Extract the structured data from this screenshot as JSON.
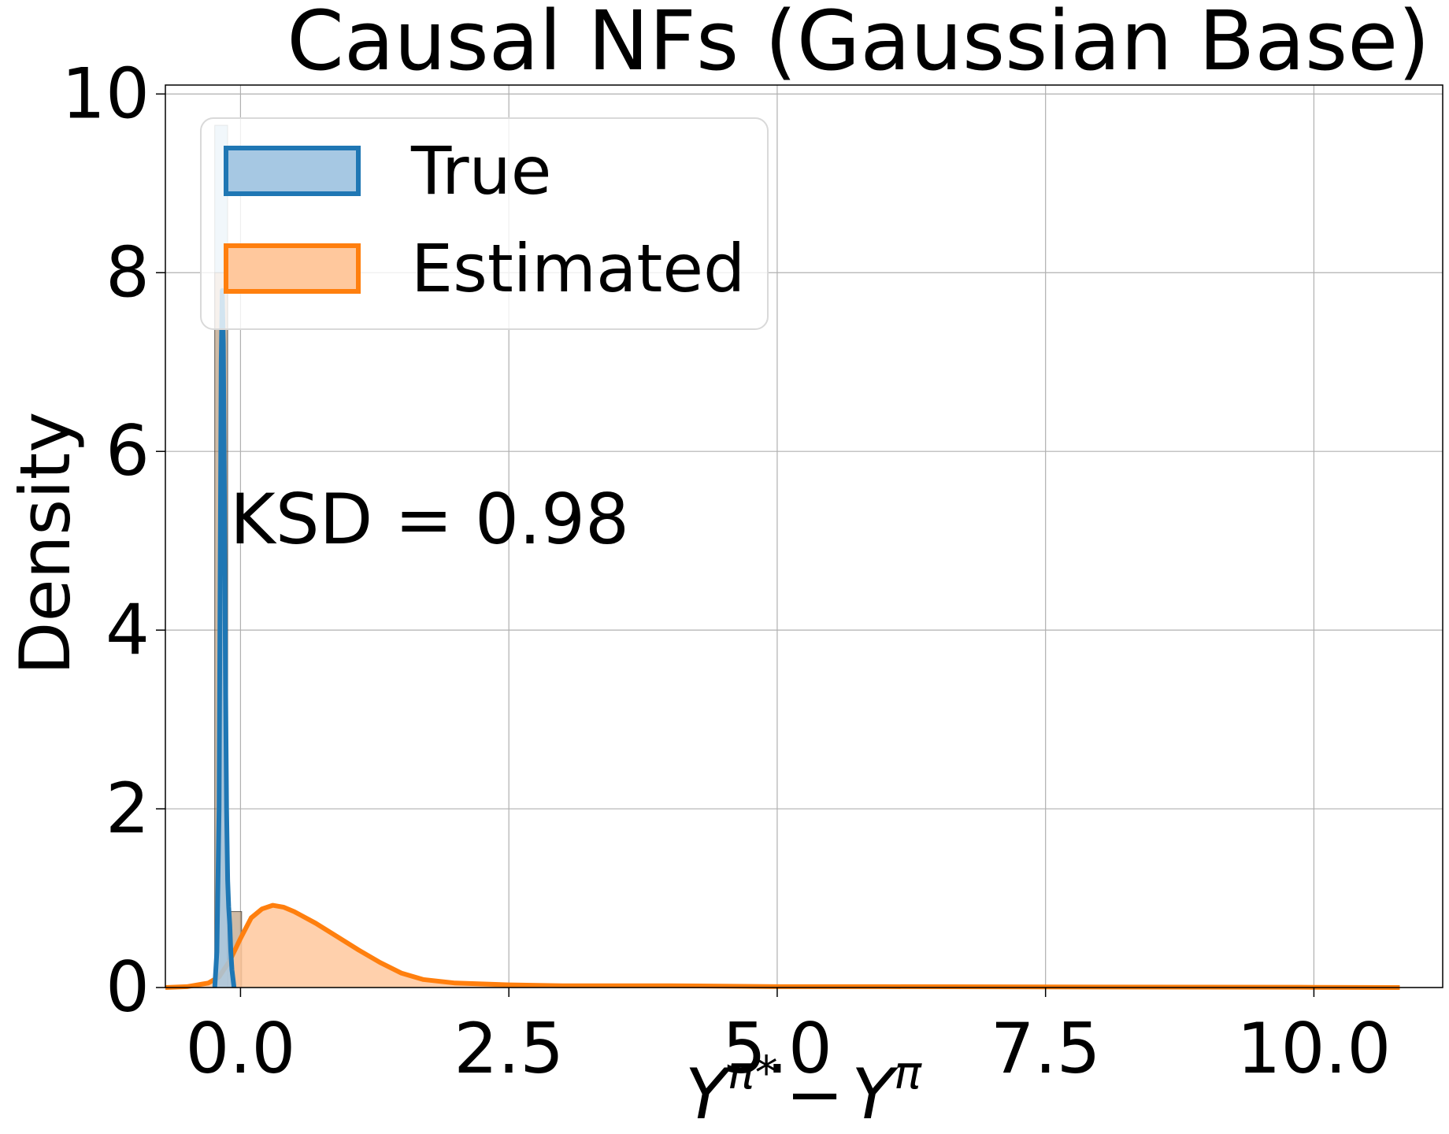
{
  "chart_data": {
    "type": "area",
    "title": "Causal NFs (Gaussian Base)",
    "xlabel": "Y^{π*} − Y^{π}",
    "xlabel_parts": {
      "base1": "Y",
      "sup1": "π",
      "star": "*",
      "minus": "−",
      "base2": "Y",
      "sup2": "π"
    },
    "ylabel": "Density",
    "xlim": [
      -0.7,
      11.2
    ],
    "ylim": [
      0,
      10.1
    ],
    "xticks": [
      0.0,
      2.5,
      5.0,
      7.5,
      10.0
    ],
    "xtick_labels": [
      "0.0",
      "2.5",
      "5.0",
      "7.5",
      "10.0"
    ],
    "yticks": [
      0,
      2,
      4,
      6,
      8,
      10
    ],
    "ytick_labels": [
      "0",
      "2",
      "4",
      "6",
      "8",
      "10"
    ],
    "grid": true,
    "legend_position": "top-left",
    "annotation": "KSD = 0.98",
    "series": [
      {
        "name": "True",
        "kind": "histogram+kde",
        "color": "#1f77b4",
        "fill": "#a6c8e3",
        "hist_bins": [
          {
            "x0": -0.24,
            "x1": -0.12,
            "height": 9.65
          },
          {
            "x0": -0.12,
            "x1": 0.01,
            "height": 0.85
          }
        ],
        "kde_points": [
          [
            -0.24,
            0.0
          ],
          [
            -0.22,
            0.4
          ],
          [
            -0.2,
            2.0
          ],
          [
            -0.19,
            4.5
          ],
          [
            -0.18,
            7.0
          ],
          [
            -0.17,
            7.8
          ],
          [
            -0.16,
            7.2
          ],
          [
            -0.15,
            5.5
          ],
          [
            -0.14,
            3.5
          ],
          [
            -0.13,
            2.0
          ],
          [
            -0.12,
            1.2
          ],
          [
            -0.11,
            0.9
          ],
          [
            -0.1,
            0.7
          ],
          [
            -0.09,
            0.4
          ],
          [
            -0.08,
            0.2
          ],
          [
            -0.06,
            0.0
          ]
        ]
      },
      {
        "name": "Estimated",
        "kind": "histogram+kde",
        "color": "#ff7f0e",
        "fill": "#ffc89d",
        "hist_bins": [
          {
            "x0": -0.24,
            "x1": -0.12,
            "height": 8.0
          },
          {
            "x0": -0.12,
            "x1": 0.01,
            "height": 0.85
          }
        ],
        "kde_points": [
          [
            -0.7,
            0.0
          ],
          [
            -0.5,
            0.01
          ],
          [
            -0.3,
            0.05
          ],
          [
            -0.2,
            0.12
          ],
          [
            -0.1,
            0.3
          ],
          [
            0.0,
            0.55
          ],
          [
            0.1,
            0.78
          ],
          [
            0.2,
            0.88
          ],
          [
            0.3,
            0.92
          ],
          [
            0.4,
            0.9
          ],
          [
            0.5,
            0.85
          ],
          [
            0.7,
            0.72
          ],
          [
            0.9,
            0.57
          ],
          [
            1.1,
            0.42
          ],
          [
            1.3,
            0.28
          ],
          [
            1.5,
            0.16
          ],
          [
            1.7,
            0.09
          ],
          [
            2.0,
            0.05
          ],
          [
            2.5,
            0.03
          ],
          [
            3.0,
            0.02
          ],
          [
            4.0,
            0.02
          ],
          [
            5.0,
            0.01
          ],
          [
            6.0,
            0.01
          ],
          [
            8.0,
            0.005
          ],
          [
            10.0,
            0.003
          ],
          [
            10.8,
            0.0
          ]
        ]
      }
    ]
  }
}
